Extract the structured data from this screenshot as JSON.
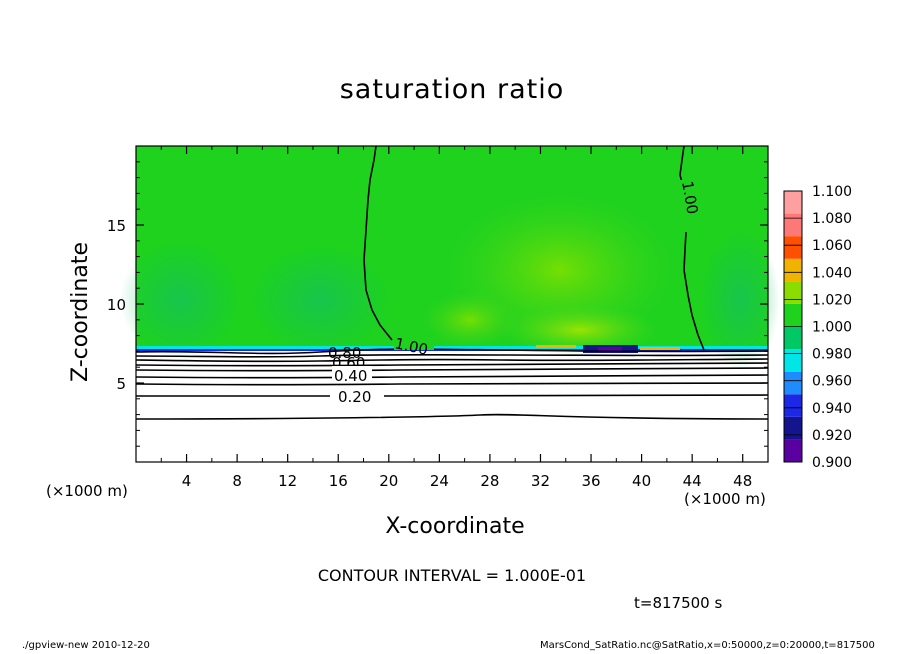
{
  "chart_data": {
    "type": "heatmap",
    "title": "saturation ratio",
    "xlabel": "X-coordinate",
    "ylabel": "Z-coordinate",
    "x_unit_label": "(×1000 m)",
    "xlim": [
      0,
      50
    ],
    "ylim": [
      0,
      20
    ],
    "x_ticks": [
      4,
      8,
      12,
      16,
      20,
      24,
      28,
      32,
      36,
      40,
      44,
      48
    ],
    "y_ticks": [
      5,
      10,
      15
    ],
    "colorbar": {
      "levels": [
        "0.900",
        "0.920",
        "0.940",
        "0.960",
        "0.980",
        "1.000",
        "1.020",
        "1.040",
        "1.060",
        "1.080",
        "1.100"
      ],
      "colors": [
        "#5a00a0",
        "#14148c",
        "#1c28e6",
        "#1e8cff",
        "#00e6e6",
        "#00c864",
        "#1ed21e",
        "#8cdc00",
        "#f0b400",
        "#ff5000",
        "#ff7878",
        "#ffa0a0"
      ]
    },
    "contour_labels": [
      "1.00",
      "1.00",
      "0.80",
      "0.60",
      "0.40",
      "0.20"
    ],
    "contour_interval_text": "CONTOUR INTERVAL = 1.000E-01",
    "time_text": "t=817500 s"
  },
  "footer": {
    "program": "./gpview-new   2010-12-20",
    "source": "MarsCond_SatRatio.nc@SatRatio,x=0:50000,z=0:20000,t=817500"
  }
}
